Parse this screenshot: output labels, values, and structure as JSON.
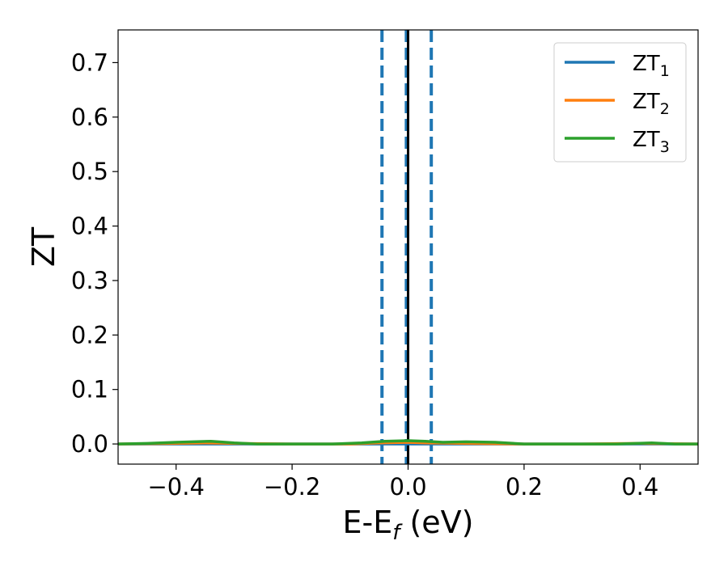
{
  "chart_data": {
    "type": "line",
    "xlabel": "E-E",
    "xlabel_sub": "f",
    "xlabel_unit": " (eV)",
    "ylabel": "ZT",
    "xlim": [
      -0.5,
      0.5
    ],
    "ylim": [
      -0.037,
      0.76
    ],
    "x_ticks": [
      -0.4,
      -0.2,
      0.0,
      0.2,
      0.4
    ],
    "x_tick_labels": [
      "−0.4",
      "−0.2",
      "0.0",
      "0.2",
      "0.4"
    ],
    "y_ticks": [
      0.0,
      0.1,
      0.2,
      0.3,
      0.4,
      0.5,
      0.6,
      0.7
    ],
    "y_tick_labels": [
      "0.0",
      "0.1",
      "0.2",
      "0.3",
      "0.4",
      "0.5",
      "0.6",
      "0.7"
    ],
    "grid": false,
    "legend_position": "top-right",
    "vertical_lines": [
      {
        "x": -0.045,
        "style": "dashed",
        "color": "#1f77b4"
      },
      {
        "x": -0.003,
        "style": "dashed",
        "color": "#1f77b4"
      },
      {
        "x": 0.0,
        "style": "solid",
        "color": "#000000"
      },
      {
        "x": 0.04,
        "style": "dashed",
        "color": "#1f77b4"
      }
    ],
    "series": [
      {
        "name": "ZT",
        "name_sub": "1",
        "color": "#1f77b4",
        "x": [
          -0.5,
          -0.4,
          -0.3,
          -0.2,
          -0.1,
          -0.05,
          0.0,
          0.05,
          0.1,
          0.2,
          0.3,
          0.4,
          0.5
        ],
        "y": [
          0.0,
          0.0,
          0.0,
          0.0,
          0.0,
          0.0,
          0.0,
          0.0,
          0.0,
          0.0,
          0.0,
          0.0,
          0.0
        ]
      },
      {
        "name": "ZT",
        "name_sub": "2",
        "color": "#ff7f0e",
        "x": [
          -0.5,
          -0.4,
          -0.35,
          -0.3,
          -0.2,
          -0.1,
          -0.05,
          0.0,
          0.03,
          0.1,
          0.2,
          0.3,
          0.4,
          0.5
        ],
        "y": [
          0.0,
          0.001,
          0.002,
          0.001,
          0.0,
          0.0,
          0.002,
          0.003,
          0.002,
          0.001,
          0.0,
          0.0,
          0.001,
          0.0
        ]
      },
      {
        "name": "ZT",
        "name_sub": "3",
        "color": "#2ca02c",
        "x": [
          -0.5,
          -0.45,
          -0.4,
          -0.34,
          -0.3,
          -0.26,
          -0.2,
          -0.13,
          -0.08,
          -0.04,
          0.0,
          0.03,
          0.06,
          0.1,
          0.15,
          0.2,
          0.25,
          0.3,
          0.36,
          0.42,
          0.46,
          0.5
        ],
        "y": [
          0.0,
          0.001,
          0.003,
          0.005,
          0.002,
          0.0,
          0.0,
          0.0,
          0.002,
          0.005,
          0.006,
          0.005,
          0.003,
          0.004,
          0.003,
          0.0,
          0.0,
          0.0,
          0.0,
          0.002,
          0.0,
          0.0
        ]
      }
    ]
  }
}
